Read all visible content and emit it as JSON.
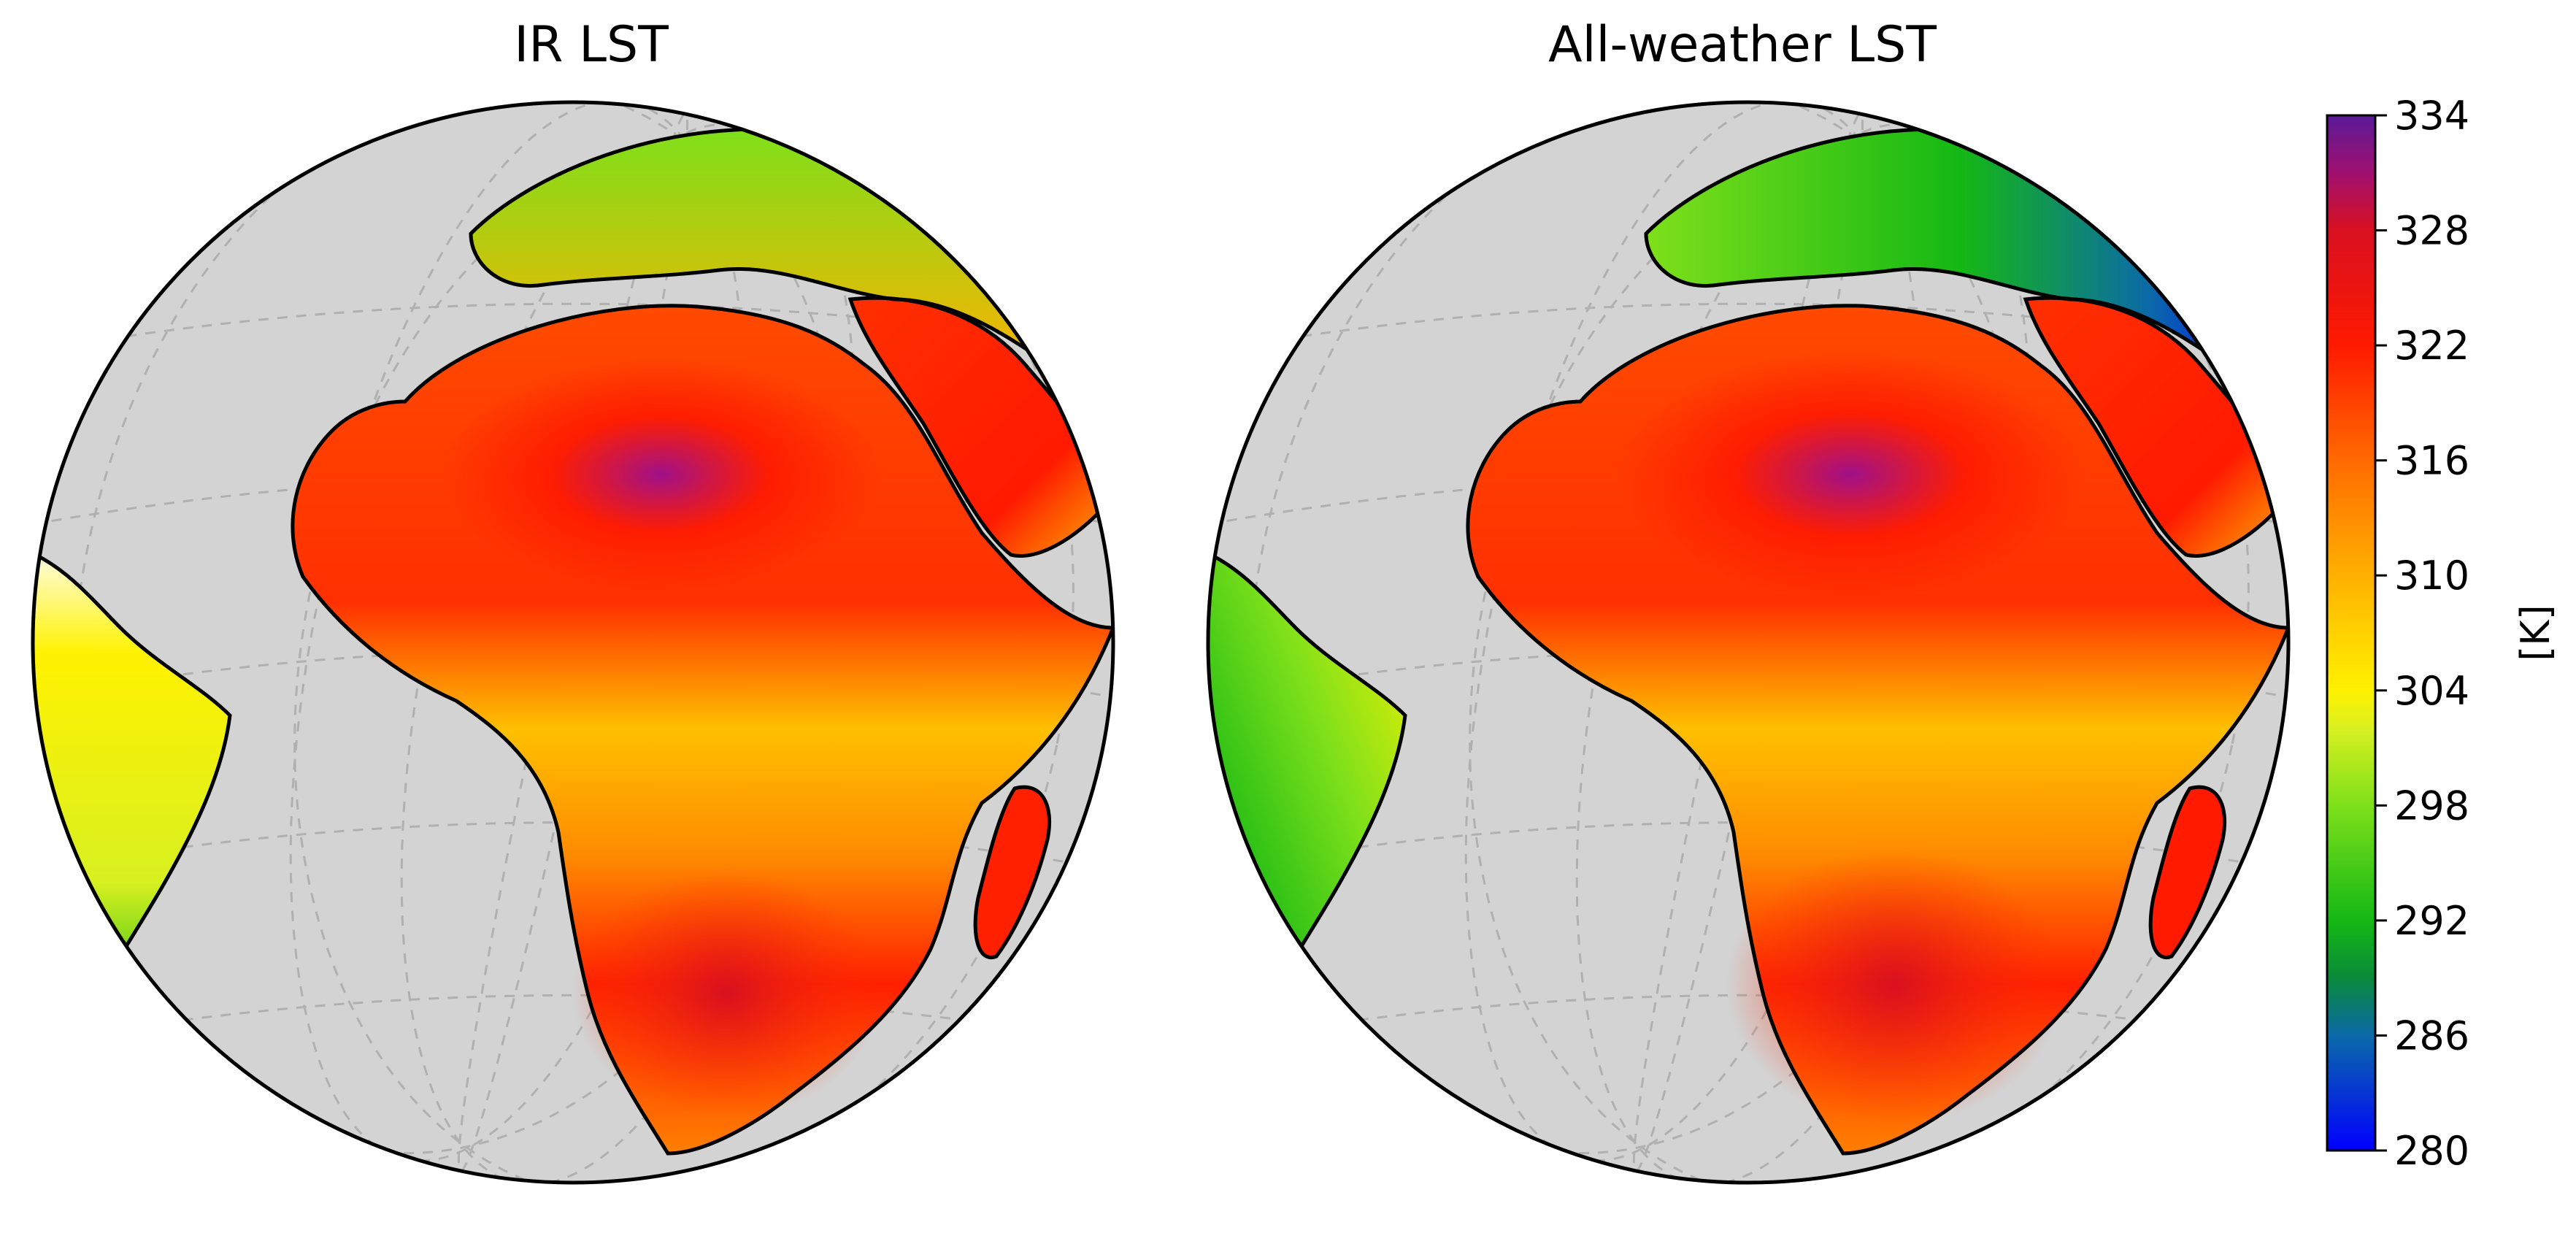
{
  "panels": [
    {
      "title": "IR LST"
    },
    {
      "title": "All-weather LST"
    }
  ],
  "colorbar": {
    "label": "[K]",
    "min": 280,
    "max": 334,
    "ticks": [
      280,
      286,
      292,
      298,
      304,
      310,
      316,
      322,
      328,
      334
    ],
    "colormap": [
      [
        280,
        "#0000ff"
      ],
      [
        286,
        "#0b6aa8"
      ],
      [
        289,
        "#0a8a3a"
      ],
      [
        292,
        "#14b814"
      ],
      [
        298,
        "#7ee01a"
      ],
      [
        302,
        "#d8f020"
      ],
      [
        304,
        "#fff200"
      ],
      [
        310,
        "#ffb000"
      ],
      [
        316,
        "#ff6a00"
      ],
      [
        322,
        "#ff1a00"
      ],
      [
        328,
        "#d81020"
      ],
      [
        331,
        "#a01070"
      ],
      [
        334,
        "#5a1a98"
      ]
    ]
  },
  "map_colors": {
    "ocean": "#d3d3d3",
    "coast": "#000000",
    "no_data": "#ffffff"
  }
}
